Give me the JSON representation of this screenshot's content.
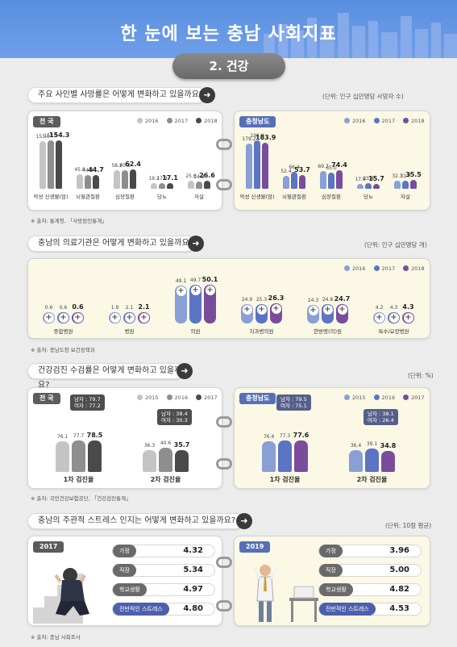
{
  "header": {
    "title": "한 눈에 보는 충남 사회지표",
    "subtitle": "2. 건강"
  },
  "colors": {
    "y2016": "#c4c4c4",
    "y2017": "#8e8e8e",
    "y2018": "#4a4a4a",
    "b2016": "#8a9fd6",
    "b2017": "#5b74c4",
    "b2018": "#7a4d9c"
  },
  "death": {
    "question": "주요 사인별 사망률은 어떻게 변화하고 있을까요?",
    "unit": "(단위: 인구 십만명당 사망자 수)",
    "source": "※ 출처: 통계청, 「사망원인통계」",
    "legend": [
      "2016",
      "2017",
      "2018"
    ],
    "national": {
      "tag": "전 국",
      "categories": [
        "악성 신생물(암)",
        "뇌혈관질환",
        "심장질환",
        "당뇨",
        "자살"
      ],
      "values": [
        [
          153.0,
          153.9,
          154.3
        ],
        [
          45.8,
          44.4,
          44.7
        ],
        [
          58.2,
          60.2,
          62.4
        ],
        [
          19.2,
          17.9,
          17.1
        ],
        [
          25.6,
          24.3,
          26.6
        ]
      ]
    },
    "chungnam": {
      "tag": "충청남도",
      "categories": [
        "악성 신생물(암)",
        "뇌혈관질환",
        "심장질환",
        "당뇨",
        "자살"
      ],
      "values": [
        [
          179.2,
          192.9,
          183.9
        ],
        [
          52.4,
          66.4,
          53.7
        ],
        [
          69.7,
          65.0,
          74.4
        ],
        [
          17.9,
          23.4,
          15.7
        ],
        [
          32.1,
          31.7,
          35.5
        ]
      ]
    }
  },
  "medical": {
    "question": "충남의 의료기관은 어떻게 변화하고 있을까요?",
    "unit": "(단위: 인구 십만명당 개)",
    "source": "※ 출처: 충남도청 보건정책과",
    "legend": [
      "2016",
      "2017",
      "2018"
    ],
    "categories": [
      "종합병원",
      "병원",
      "의원",
      "치과병의원",
      "한방병(의)원",
      "특수/요양병원"
    ],
    "values": [
      [
        0.6,
        0.6,
        0.6
      ],
      [
        1.9,
        2.1,
        2.1
      ],
      [
        49.1,
        49.7,
        50.1
      ],
      [
        24.9,
        25.3,
        26.3
      ],
      [
        24.3,
        24.8,
        24.7
      ],
      [
        4.2,
        4.3,
        4.3
      ]
    ]
  },
  "checkup": {
    "question": "건강검진 수검률은 어떻게 변화하고 있을까요?",
    "unit": "(단위: %)",
    "source": "※ 출처: 국민건강보험공단, 「건강검진통계」",
    "legend": [
      "2015",
      "2016",
      "2017"
    ],
    "national": {
      "tag": "전 국",
      "categories": [
        "1차 검진율",
        "2차 검진율"
      ],
      "values": [
        [
          76.1,
          77.7,
          78.5
        ],
        [
          36.3,
          40.6,
          35.7
        ]
      ],
      "callouts": [
        [
          "남자 : 79.7",
          "여자 : 77.2"
        ],
        [
          "남자 : 38.4",
          "여자 : 30.3"
        ]
      ]
    },
    "chungnam": {
      "tag": "충청남도",
      "categories": [
        "1차 검진율",
        "2차 검진율"
      ],
      "values": [
        [
          76.4,
          77.3,
          77.6
        ],
        [
          36.4,
          39.1,
          34.8
        ]
      ],
      "callouts": [
        [
          "남자 : 79.5",
          "여자 : 75.1"
        ],
        [
          "남자 : 38.1",
          "여자 : 26.4"
        ]
      ]
    }
  },
  "stress": {
    "question": "충남의 주관적 스트레스 인지는 어떻게 변화하고 있을까요?",
    "unit": "(단위: 10점 평균)",
    "source": "※ 출처: 충남 사회조사",
    "y2017": {
      "tag": "2017",
      "rows": [
        [
          "가정",
          "4.32"
        ],
        [
          "직장",
          "5.34"
        ],
        [
          "학교생활",
          "4.97"
        ],
        [
          "전반적인 스트레스",
          "4.80"
        ]
      ]
    },
    "y2019": {
      "tag": "2019",
      "rows": [
        [
          "가정",
          "3.96"
        ],
        [
          "직장",
          "5.00"
        ],
        [
          "학교생활",
          "4.82"
        ],
        [
          "전반적인 스트레스",
          "4.53"
        ]
      ]
    }
  }
}
